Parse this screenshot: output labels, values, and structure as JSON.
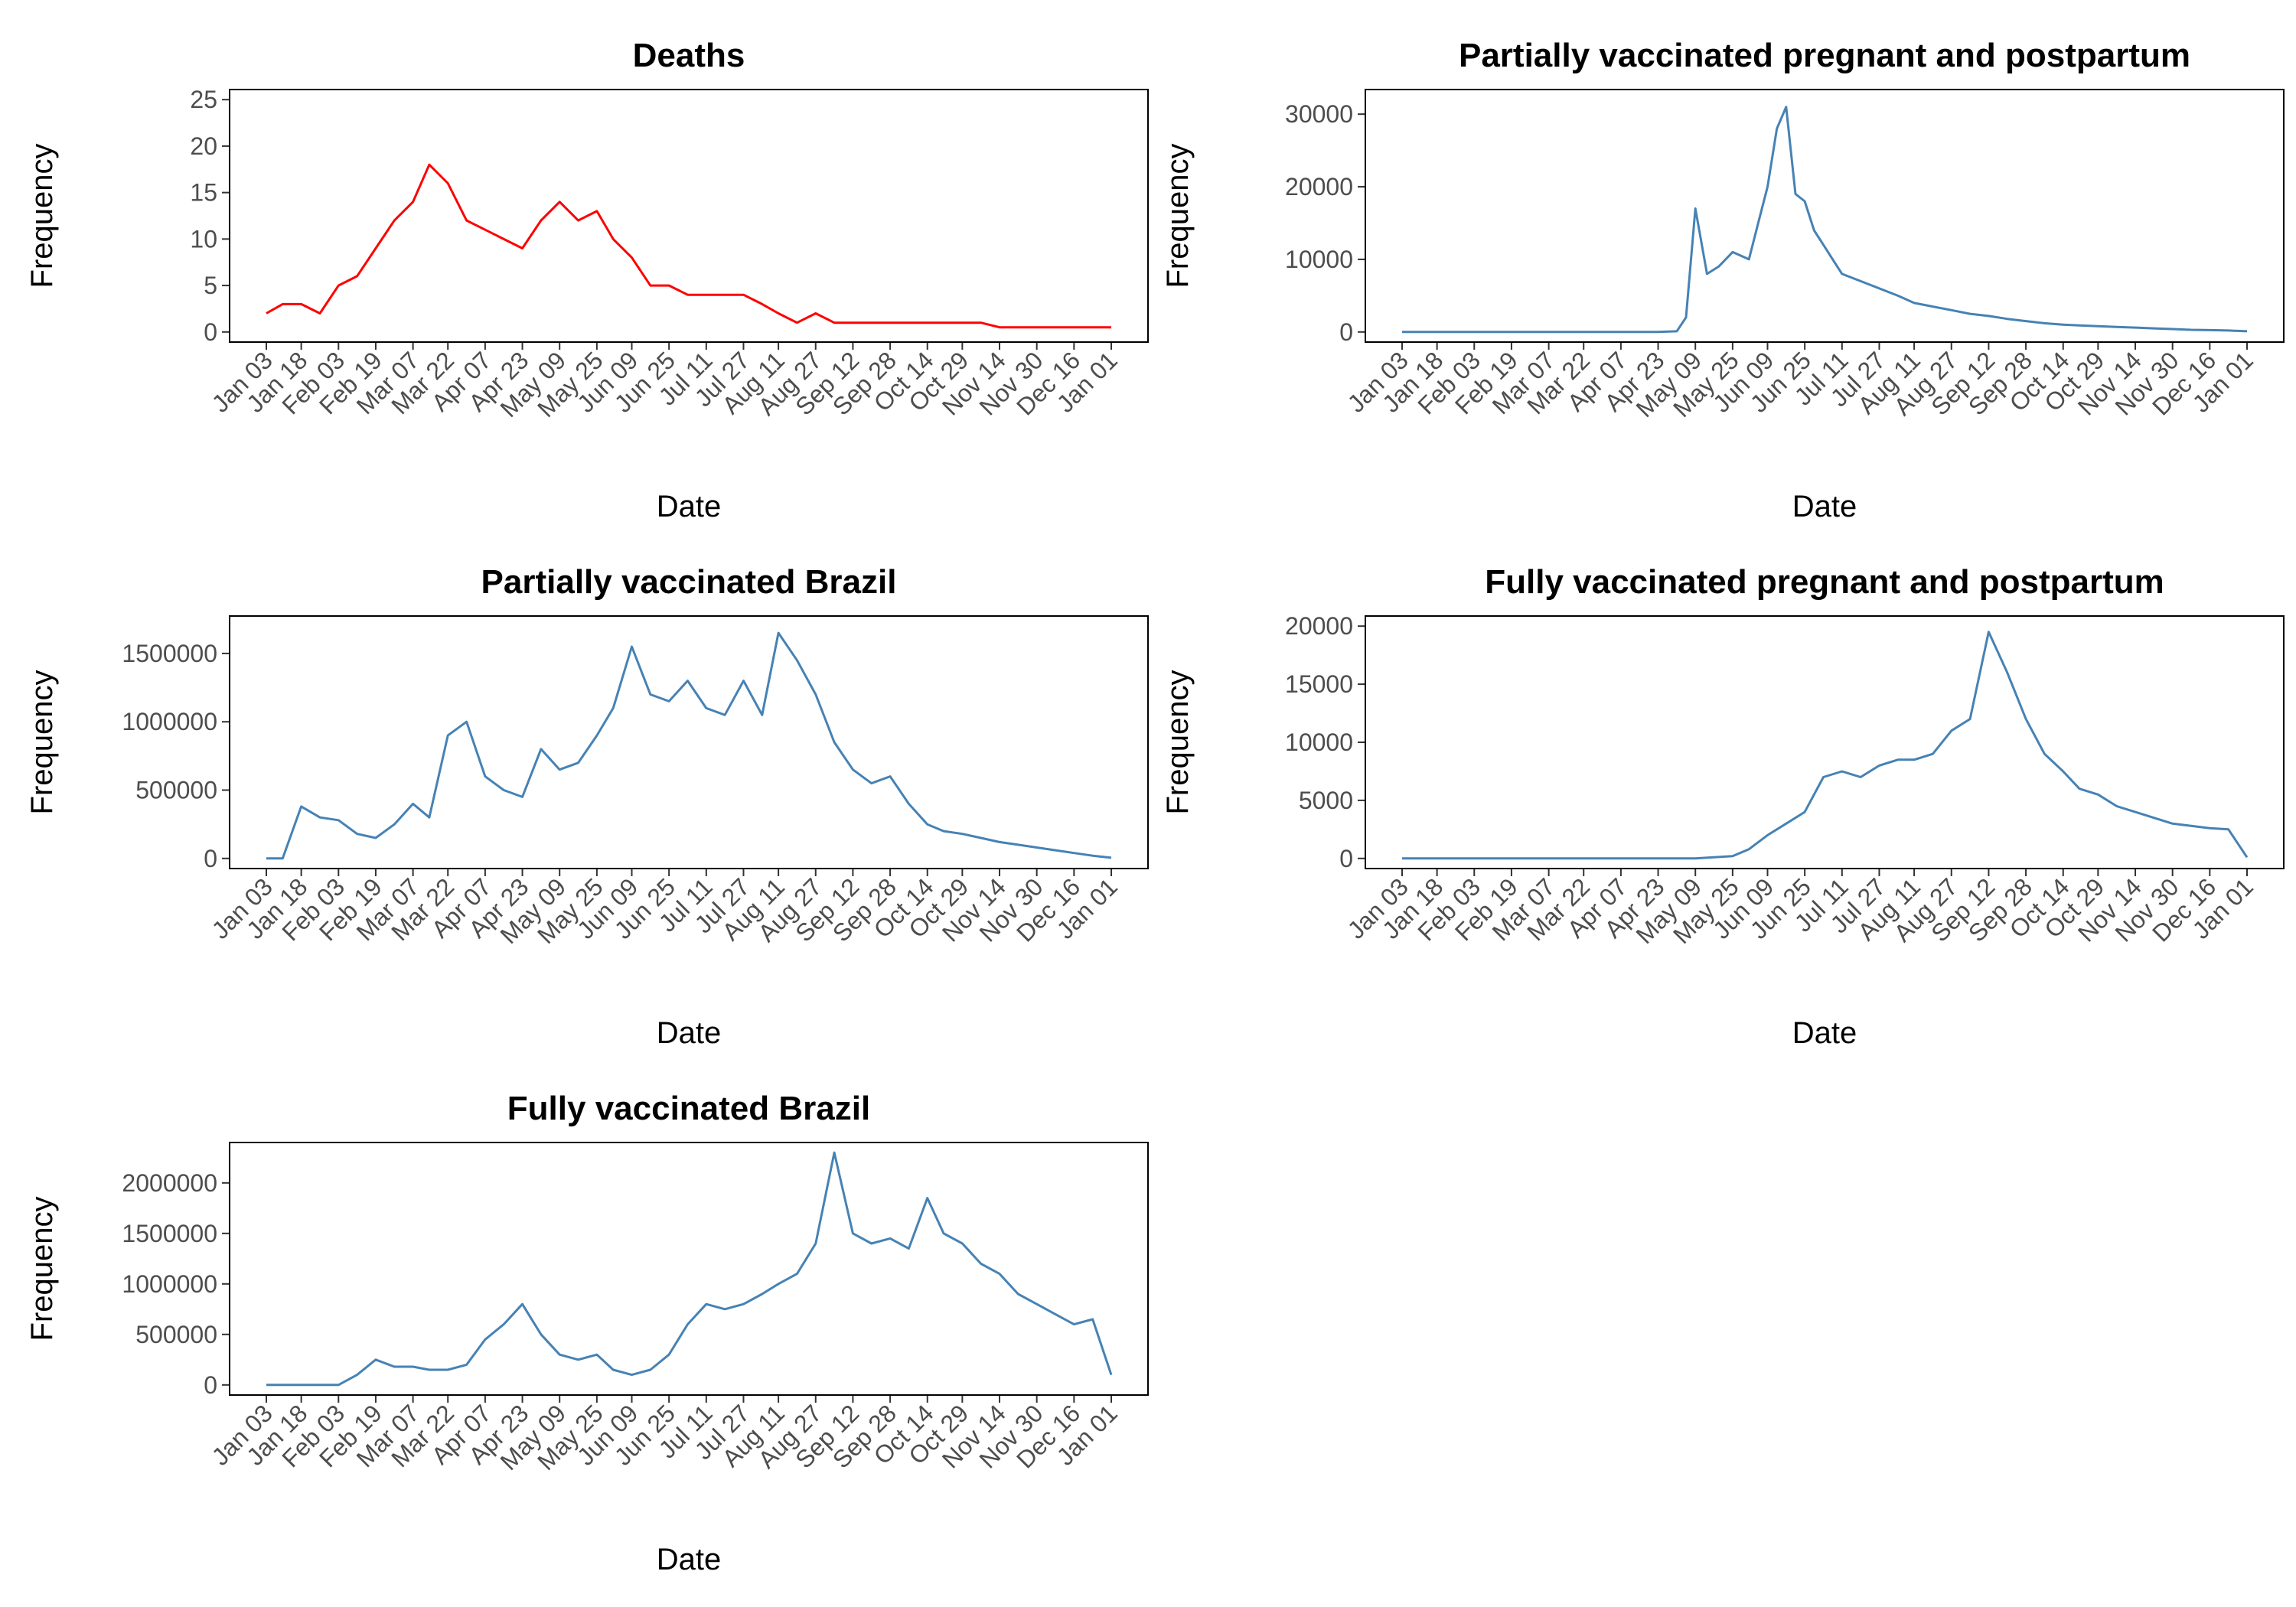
{
  "chart_data": [
    {
      "type": "line",
      "title": "Deaths",
      "xlabel": "Date",
      "ylabel": "Frequency",
      "color": "#FF0000",
      "x_ticks": [
        "Jan 03",
        "Jan 18",
        "Feb 03",
        "Feb 19",
        "Mar 07",
        "Mar 22",
        "Apr 07",
        "Apr 23",
        "May 09",
        "May 25",
        "Jun 09",
        "Jun 25",
        "Jul 11",
        "Jul 27",
        "Aug 11",
        "Aug 27",
        "Sep 12",
        "Sep 28",
        "Oct 14",
        "Oct 29",
        "Nov 14",
        "Nov 30",
        "Dec 16",
        "Jan 01"
      ],
      "y_ticks": [
        "0",
        "5",
        "10",
        "15",
        "20",
        "25"
      ],
      "ylim": [
        0,
        25
      ],
      "x": [
        "Jan 03",
        "Jan 10",
        "Jan 18",
        "Jan 26",
        "Feb 03",
        "Feb 11",
        "Feb 19",
        "Feb 27",
        "Mar 07",
        "Mar 14",
        "Mar 22",
        "Mar 30",
        "Apr 07",
        "Apr 15",
        "Apr 23",
        "May 01",
        "May 09",
        "May 17",
        "May 25",
        "Jun 01",
        "Jun 09",
        "Jun 17",
        "Jun 25",
        "Jul 03",
        "Jul 11",
        "Jul 19",
        "Jul 27",
        "Aug 04",
        "Aug 11",
        "Aug 19",
        "Aug 27",
        "Sep 04",
        "Sep 12",
        "Sep 20",
        "Sep 28",
        "Oct 06",
        "Oct 14",
        "Oct 21",
        "Oct 29",
        "Nov 06",
        "Nov 14",
        "Nov 22",
        "Nov 30",
        "Dec 08",
        "Dec 16",
        "Dec 24",
        "Jan 01"
      ],
      "values": [
        2,
        3,
        3,
        2,
        5,
        6,
        9,
        12,
        14,
        18,
        16,
        12,
        11,
        10,
        9,
        12,
        14,
        12,
        13,
        10,
        8,
        5,
        5,
        4,
        4,
        4,
        4,
        3,
        2,
        1,
        2,
        1,
        1,
        1,
        1,
        1,
        1,
        1,
        1,
        1,
        0.5,
        0.5,
        0.5,
        0.5,
        0.5,
        0.5,
        0.5
      ]
    },
    {
      "type": "line",
      "title": "Partially vaccinated pregnant and postpartum",
      "xlabel": "Date",
      "ylabel": "Frequency",
      "color": "#4682B4",
      "x_ticks": [
        "Jan 03",
        "Jan 18",
        "Feb 03",
        "Feb 19",
        "Mar 07",
        "Mar 22",
        "Apr 07",
        "Apr 23",
        "May 09",
        "May 25",
        "Jun 09",
        "Jun 25",
        "Jul 11",
        "Jul 27",
        "Aug 11",
        "Aug 27",
        "Sep 12",
        "Sep 28",
        "Oct 14",
        "Oct 29",
        "Nov 14",
        "Nov 30",
        "Dec 16",
        "Jan 01"
      ],
      "y_ticks": [
        "0",
        "10000",
        "20000",
        "30000"
      ],
      "ylim": [
        0,
        32000
      ],
      "x": [
        "Jan 03",
        "Jan 18",
        "Feb 03",
        "Feb 19",
        "Mar 07",
        "Mar 22",
        "Apr 07",
        "Apr 23",
        "May 01",
        "May 05",
        "May 09",
        "May 14",
        "May 19",
        "May 25",
        "Jun 01",
        "Jun 05",
        "Jun 09",
        "Jun 13",
        "Jun 17",
        "Jun 21",
        "Jun 25",
        "Jun 29",
        "Jul 03",
        "Jul 07",
        "Jul 11",
        "Jul 19",
        "Jul 27",
        "Aug 04",
        "Aug 11",
        "Aug 19",
        "Aug 27",
        "Sep 04",
        "Sep 12",
        "Sep 20",
        "Sep 28",
        "Oct 06",
        "Oct 14",
        "Oct 21",
        "Oct 29",
        "Nov 06",
        "Nov 14",
        "Nov 22",
        "Nov 30",
        "Dec 08",
        "Dec 16",
        "Dec 24",
        "Jan 01"
      ],
      "values": [
        0,
        0,
        0,
        0,
        0,
        0,
        0,
        0,
        100,
        2000,
        17000,
        8000,
        9000,
        11000,
        10000,
        15000,
        20000,
        28000,
        31000,
        19000,
        18000,
        14000,
        12000,
        10000,
        8000,
        7000,
        6000,
        5000,
        4000,
        3500,
        3000,
        2500,
        2200,
        1800,
        1500,
        1200,
        1000,
        900,
        800,
        700,
        600,
        500,
        400,
        300,
        250,
        200,
        100
      ]
    },
    {
      "type": "line",
      "title": "Partially vaccinated Brazil",
      "xlabel": "Date",
      "ylabel": "Frequency",
      "color": "#4682B4",
      "x_ticks": [
        "Jan 03",
        "Jan 18",
        "Feb 03",
        "Feb 19",
        "Mar 07",
        "Mar 22",
        "Apr 07",
        "Apr 23",
        "May 09",
        "May 25",
        "Jun 09",
        "Jun 25",
        "Jul 11",
        "Jul 27",
        "Aug 11",
        "Aug 27",
        "Sep 12",
        "Sep 28",
        "Oct 14",
        "Oct 29",
        "Nov 14",
        "Nov 30",
        "Dec 16",
        "Jan 01"
      ],
      "y_ticks": [
        "0",
        "500000",
        "1000000",
        "1500000"
      ],
      "ylim": [
        0,
        1700000
      ],
      "x": [
        "Jan 03",
        "Jan 10",
        "Jan 18",
        "Jan 26",
        "Feb 03",
        "Feb 11",
        "Feb 19",
        "Feb 27",
        "Mar 07",
        "Mar 14",
        "Mar 22",
        "Mar 30",
        "Apr 07",
        "Apr 15",
        "Apr 23",
        "May 01",
        "May 09",
        "May 17",
        "May 25",
        "Jun 01",
        "Jun 09",
        "Jun 17",
        "Jun 25",
        "Jul 03",
        "Jul 11",
        "Jul 19",
        "Jul 27",
        "Aug 04",
        "Aug 11",
        "Aug 19",
        "Aug 27",
        "Sep 04",
        "Sep 12",
        "Sep 20",
        "Sep 28",
        "Oct 06",
        "Oct 14",
        "Oct 21",
        "Oct 29",
        "Nov 06",
        "Nov 14",
        "Nov 22",
        "Nov 30",
        "Dec 08",
        "Dec 16",
        "Dec 24",
        "Jan 01"
      ],
      "values": [
        0,
        0,
        380000,
        300000,
        280000,
        180000,
        150000,
        250000,
        400000,
        300000,
        900000,
        1000000,
        600000,
        500000,
        450000,
        800000,
        650000,
        700000,
        900000,
        1100000,
        1550000,
        1200000,
        1150000,
        1300000,
        1100000,
        1050000,
        1300000,
        1050000,
        1650000,
        1450000,
        1200000,
        850000,
        650000,
        550000,
        600000,
        400000,
        250000,
        200000,
        180000,
        150000,
        120000,
        100000,
        80000,
        60000,
        40000,
        20000,
        5000
      ]
    },
    {
      "type": "line",
      "title": "Fully vaccinated pregnant and postpartum",
      "xlabel": "Date",
      "ylabel": "Frequency",
      "color": "#4682B4",
      "x_ticks": [
        "Jan 03",
        "Jan 18",
        "Feb 03",
        "Feb 19",
        "Mar 07",
        "Mar 22",
        "Apr 07",
        "Apr 23",
        "May 09",
        "May 25",
        "Jun 09",
        "Jun 25",
        "Jul 11",
        "Jul 27",
        "Aug 11",
        "Aug 27",
        "Sep 12",
        "Sep 28",
        "Oct 14",
        "Oct 29",
        "Nov 14",
        "Nov 30",
        "Dec 16",
        "Jan 01"
      ],
      "y_ticks": [
        "0",
        "5000",
        "10000",
        "15000",
        "20000"
      ],
      "ylim": [
        0,
        20000
      ],
      "x": [
        "Jan 03",
        "Jan 18",
        "Feb 03",
        "Feb 19",
        "Mar 07",
        "Mar 22",
        "Apr 07",
        "Apr 23",
        "May 09",
        "May 25",
        "Jun 01",
        "Jun 09",
        "Jun 17",
        "Jun 25",
        "Jul 03",
        "Jul 11",
        "Jul 19",
        "Jul 27",
        "Aug 04",
        "Aug 11",
        "Aug 19",
        "Aug 27",
        "Sep 04",
        "Sep 12",
        "Sep 20",
        "Sep 28",
        "Oct 06",
        "Oct 14",
        "Oct 21",
        "Oct 29",
        "Nov 06",
        "Nov 14",
        "Nov 22",
        "Nov 30",
        "Dec 08",
        "Dec 16",
        "Dec 24",
        "Jan 01"
      ],
      "values": [
        0,
        0,
        0,
        0,
        0,
        0,
        0,
        0,
        0,
        200,
        800,
        2000,
        3000,
        4000,
        7000,
        7500,
        7000,
        8000,
        8500,
        8500,
        9000,
        11000,
        12000,
        19500,
        16000,
        12000,
        9000,
        7500,
        6000,
        5500,
        4500,
        4000,
        3500,
        3000,
        2800,
        2600,
        2500,
        100
      ]
    },
    {
      "type": "line",
      "title": "Fully vaccinated Brazil",
      "xlabel": "Date",
      "ylabel": "Frequency",
      "color": "#4682B4",
      "x_ticks": [
        "Jan 03",
        "Jan 18",
        "Feb 03",
        "Feb 19",
        "Mar 07",
        "Mar 22",
        "Apr 07",
        "Apr 23",
        "May 09",
        "May 25",
        "Jun 09",
        "Jun 25",
        "Jul 11",
        "Jul 27",
        "Aug 11",
        "Aug 27",
        "Sep 12",
        "Sep 28",
        "Oct 14",
        "Oct 29",
        "Nov 14",
        "Nov 30",
        "Dec 16",
        "Jan 01"
      ],
      "y_ticks": [
        "0",
        "500000",
        "1000000",
        "1500000",
        "2000000"
      ],
      "ylim": [
        0,
        2300000
      ],
      "x": [
        "Jan 03",
        "Jan 10",
        "Jan 18",
        "Jan 26",
        "Feb 03",
        "Feb 11",
        "Feb 19",
        "Feb 27",
        "Mar 07",
        "Mar 14",
        "Mar 22",
        "Mar 30",
        "Apr 07",
        "Apr 15",
        "Apr 23",
        "May 01",
        "May 09",
        "May 17",
        "May 25",
        "Jun 01",
        "Jun 09",
        "Jun 17",
        "Jun 25",
        "Jul 03",
        "Jul 11",
        "Jul 19",
        "Jul 27",
        "Aug 04",
        "Aug 11",
        "Aug 19",
        "Aug 27",
        "Sep 04",
        "Sep 12",
        "Sep 20",
        "Sep 28",
        "Oct 06",
        "Oct 14",
        "Oct 21",
        "Oct 29",
        "Nov 06",
        "Nov 14",
        "Nov 22",
        "Nov 30",
        "Dec 08",
        "Dec 16",
        "Dec 24",
        "Jan 01"
      ],
      "values": [
        0,
        0,
        0,
        0,
        0,
        100000,
        250000,
        180000,
        180000,
        150000,
        150000,
        200000,
        450000,
        600000,
        800000,
        500000,
        300000,
        250000,
        300000,
        150000,
        100000,
        150000,
        300000,
        600000,
        800000,
        750000,
        800000,
        900000,
        1000000,
        1100000,
        1400000,
        2300000,
        1500000,
        1400000,
        1450000,
        1350000,
        1850000,
        1500000,
        1400000,
        1200000,
        1100000,
        900000,
        800000,
        700000,
        600000,
        650000,
        100000
      ]
    }
  ]
}
